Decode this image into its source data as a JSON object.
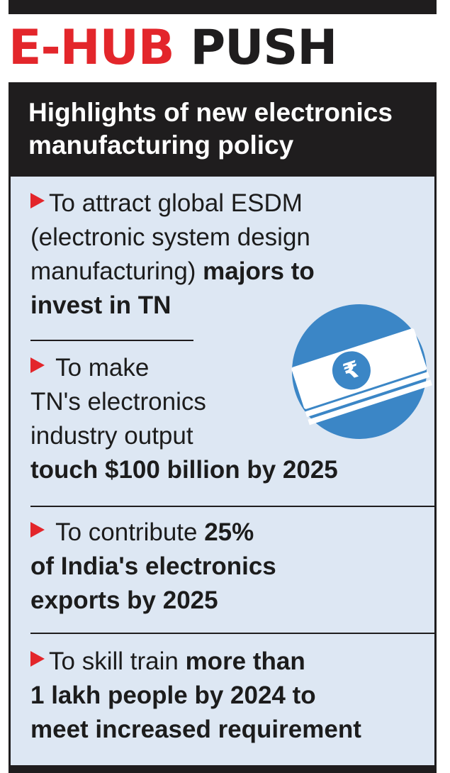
{
  "headline": {
    "part1": "E-HUB",
    "part2": "PUSH"
  },
  "header": {
    "line1": "Highlights of new electronics",
    "line2": "manufacturing policy"
  },
  "items": [
    {
      "lines": [
        {
          "normal": "To attract global ESDM"
        },
        {
          "normal": "(electronic system design"
        },
        {
          "normal": "manufacturing) ",
          "bold": "majors to"
        },
        {
          "bold": "invest in TN"
        }
      ]
    },
    {
      "lines": [
        {
          "normal": " To make"
        },
        {
          "normal": "TN's electronics"
        },
        {
          "normal": "industry output"
        },
        {
          "bold": "touch $100 billion by 2025"
        }
      ]
    },
    {
      "lines": [
        {
          "normal": " To contribute ",
          "bold": "25%"
        },
        {
          "bold": "of India's electronics"
        },
        {
          "bold": "exports by 2025"
        }
      ]
    },
    {
      "lines": [
        {
          "normal": "To skill train ",
          "bold": "more than"
        },
        {
          "bold": "1 lakh people by 2024 to"
        },
        {
          "bold": "meet increased requirement"
        }
      ]
    }
  ],
  "icons": {
    "bullet": "red-arrow-bullet-icon",
    "illustration": "rupee-banknotes-icon"
  },
  "colors": {
    "accent_red": "#e3262b",
    "dark": "#1f1d1e",
    "panel_blue": "#dde7f3",
    "icon_blue": "#3b86c6"
  }
}
